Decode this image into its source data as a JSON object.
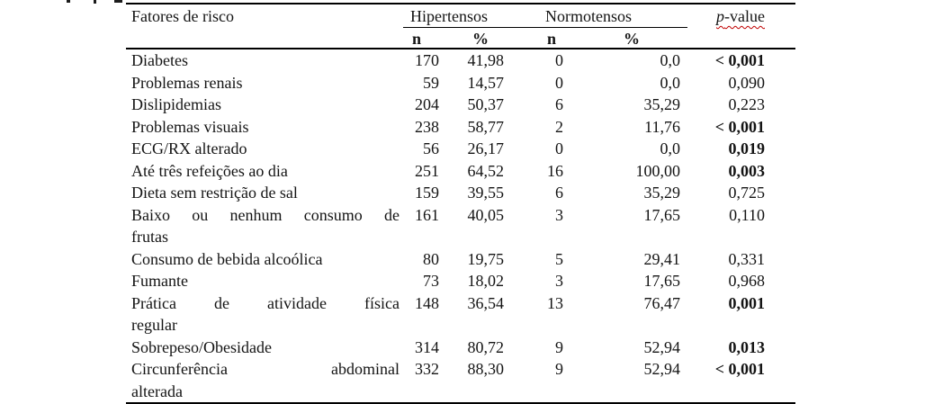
{
  "colors": {
    "text": "#141414",
    "rule": "#000000",
    "spellcheck_underline": "#c00000",
    "background": "#ffffff"
  },
  "table": {
    "header": {
      "factor": "Fatores de risco",
      "group1": "Hipertensos",
      "group2": "Normotensos",
      "pvalue": "p-value",
      "sub_n1": "n",
      "sub_pct1": "%",
      "sub_n2": "n",
      "sub_pct2": "%"
    },
    "rows": [
      {
        "factor_lines": [
          "Diabetes"
        ],
        "hip_n": "170",
        "hip_pct": "41,98",
        "nor_n": "0",
        "nor_pct": "0,0",
        "p": "< 0,001",
        "p_bold": true
      },
      {
        "factor_lines": [
          "Problemas renais"
        ],
        "hip_n": "59",
        "hip_pct": "14,57",
        "nor_n": "0",
        "nor_pct": "0,0",
        "p": "0,090",
        "p_bold": false
      },
      {
        "factor_lines": [
          "Dislipidemias"
        ],
        "hip_n": "204",
        "hip_pct": "50,37",
        "nor_n": "6",
        "nor_pct": "35,29",
        "p": "0,223",
        "p_bold": false
      },
      {
        "factor_lines": [
          "Problemas visuais"
        ],
        "hip_n": "238",
        "hip_pct": "58,77",
        "nor_n": "2",
        "nor_pct": "11,76",
        "p": "< 0,001",
        "p_bold": true
      },
      {
        "factor_lines": [
          "ECG/RX alterado"
        ],
        "hip_n": "56",
        "hip_pct": "26,17",
        "nor_n": "0",
        "nor_pct": "0,0",
        "p": "0,019",
        "p_bold": true
      },
      {
        "factor_lines": [
          "Até três refeições ao dia"
        ],
        "hip_n": "251",
        "hip_pct": "64,52",
        "nor_n": "16",
        "nor_pct": "100,00",
        "p": "0,003",
        "p_bold": true
      },
      {
        "factor_lines": [
          "Dieta sem restrição de sal"
        ],
        "hip_n": "159",
        "hip_pct": "39,55",
        "nor_n": "6",
        "nor_pct": "35,29",
        "p": "0,725",
        "p_bold": false
      },
      {
        "factor_lines": [
          "Baixo ou nenhum consumo de",
          "frutas"
        ],
        "hip_n": "161",
        "hip_pct": "40,05",
        "nor_n": "3",
        "nor_pct": "17,65",
        "p": "0,110",
        "p_bold": false
      },
      {
        "factor_lines": [
          "Consumo de bebida alcoólica"
        ],
        "hip_n": "80",
        "hip_pct": "19,75",
        "nor_n": "5",
        "nor_pct": "29,41",
        "p": "0,331",
        "p_bold": false
      },
      {
        "factor_lines": [
          "Fumante"
        ],
        "hip_n": "73",
        "hip_pct": "18,02",
        "nor_n": "3",
        "nor_pct": "17,65",
        "p": "0,968",
        "p_bold": false
      },
      {
        "factor_lines": [
          "Prática de atividade física",
          "regular"
        ],
        "hip_n": "148",
        "hip_pct": "36,54",
        "nor_n": "13",
        "nor_pct": "76,47",
        "p": "0,001",
        "p_bold": true
      },
      {
        "factor_lines": [
          "Sobrepeso/Obesidade"
        ],
        "hip_n": "314",
        "hip_pct": "80,72",
        "nor_n": "9",
        "nor_pct": "52,94",
        "p": "0,013",
        "p_bold": true
      },
      {
        "factor_lines": [
          "Circunferência abdominal",
          "alterada"
        ],
        "hip_n": "332",
        "hip_pct": "88,30",
        "nor_n": "9",
        "nor_pct": "52,94",
        "p": "< 0,001",
        "p_bold": true
      }
    ]
  }
}
